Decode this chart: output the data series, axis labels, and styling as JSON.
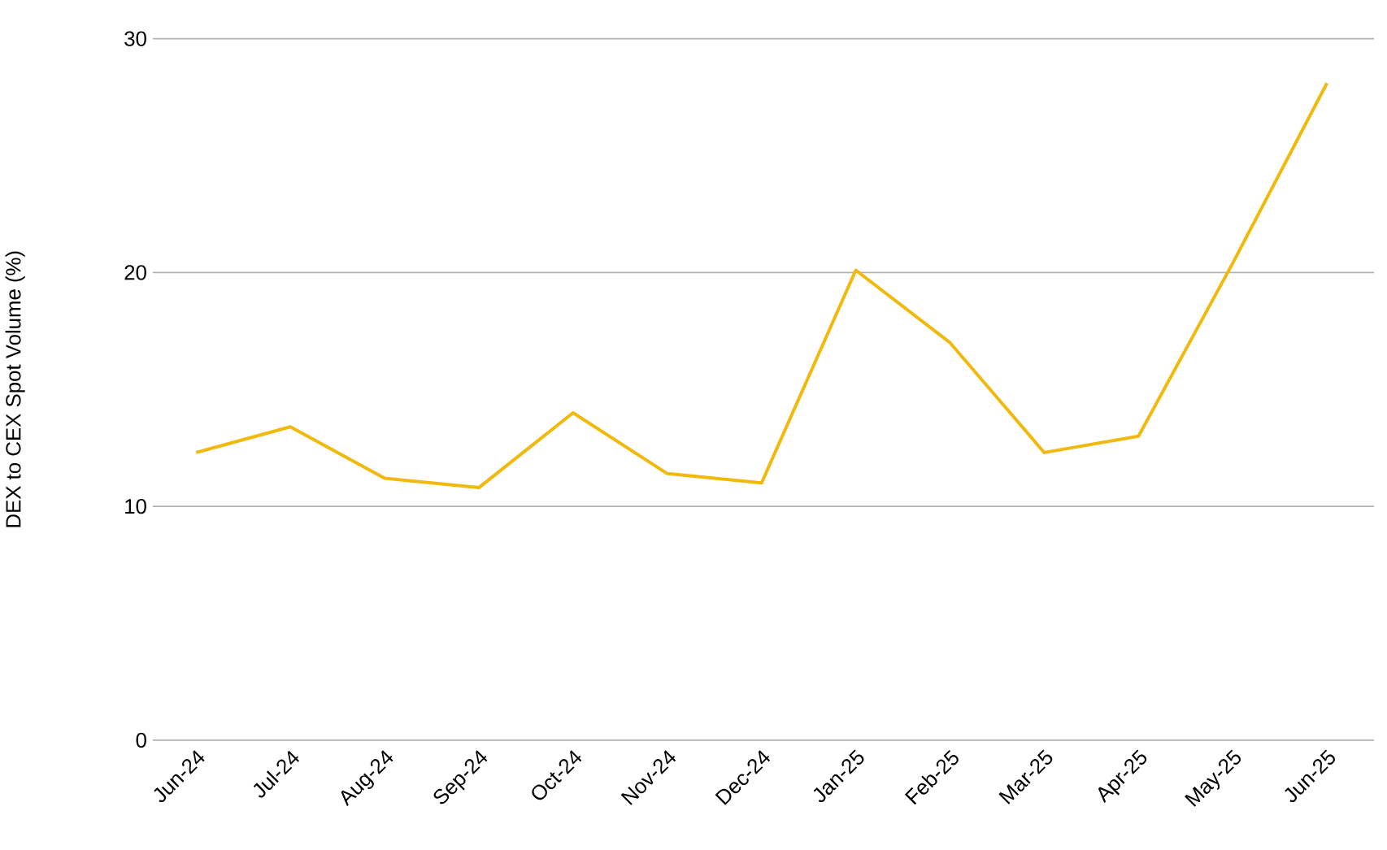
{
  "chart_data": {
    "type": "line",
    "ylabel": "DEX to CEX Spot Volume (%)",
    "categories": [
      "Jun-24",
      "Jul-24",
      "Aug-24",
      "Sep-24",
      "Oct-24",
      "Nov-24",
      "Dec-24",
      "Jan-25",
      "Feb-25",
      "Mar-25",
      "Apr-25",
      "May-25",
      "Jun-25"
    ],
    "series": [
      {
        "color": "#f0b90b",
        "values": [
          12.3,
          13.4,
          11.2,
          10.8,
          14.0,
          11.4,
          11.0,
          20.1,
          17.0,
          12.3,
          13.0,
          20.4,
          28.1
        ]
      }
    ],
    "ylim": [
      0,
      30
    ],
    "yticks": [
      0,
      10,
      20,
      30
    ],
    "grid": "y",
    "marker": "none",
    "line_style": "solid"
  }
}
